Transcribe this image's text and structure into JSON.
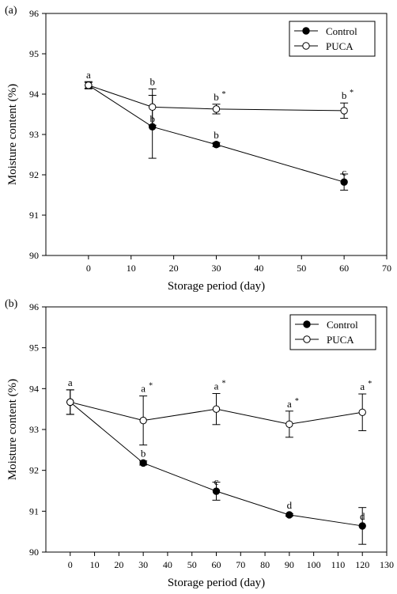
{
  "chart_data": [
    {
      "panel_label": "(a)",
      "type": "line",
      "xlabel": "Storage period (day)",
      "ylabel": "Moisture content (%)",
      "xlim": [
        -10,
        70
      ],
      "ylim": [
        90,
        96
      ],
      "xticks": [
        0,
        10,
        20,
        30,
        40,
        50,
        60,
        70
      ],
      "yticks": [
        90,
        91,
        92,
        93,
        94,
        95,
        96
      ],
      "legend": {
        "position": "top-right",
        "entries": [
          "Control",
          "PUCA"
        ]
      },
      "series": [
        {
          "name": "Control",
          "marker": "filled-circle",
          "x": [
            0,
            15,
            30,
            60
          ],
          "y": [
            94.22,
            93.19,
            92.75,
            91.82
          ],
          "err": [
            0.07,
            0.78,
            0.05,
            0.2
          ],
          "labels": [
            "a",
            "b",
            "b",
            "c"
          ],
          "sig": [
            false,
            false,
            false,
            false
          ]
        },
        {
          "name": "PUCA",
          "marker": "open-circle",
          "x": [
            0,
            15,
            30,
            60
          ],
          "y": [
            94.22,
            93.68,
            93.63,
            93.59
          ],
          "err": [
            0.09,
            0.45,
            0.12,
            0.19
          ],
          "labels": [
            "",
            "b",
            "b",
            "b"
          ],
          "sig": [
            false,
            false,
            true,
            true
          ]
        }
      ]
    },
    {
      "panel_label": "(b)",
      "type": "line",
      "xlabel": "Storage period (day)",
      "ylabel": "Moisture content (%)",
      "xlim": [
        -10,
        130
      ],
      "ylim": [
        90,
        96
      ],
      "xticks": [
        0,
        10,
        20,
        30,
        40,
        50,
        60,
        70,
        80,
        90,
        100,
        110,
        120,
        130
      ],
      "yticks": [
        90,
        91,
        92,
        93,
        94,
        95,
        96
      ],
      "legend": {
        "position": "top-right",
        "entries": [
          "Control",
          "PUCA"
        ]
      },
      "series": [
        {
          "name": "Control",
          "marker": "filled-circle",
          "x": [
            0,
            30,
            60,
            90,
            120
          ],
          "y": [
            93.67,
            92.18,
            91.49,
            90.91,
            90.64
          ],
          "err": [
            0.3,
            0.05,
            0.22,
            0.03,
            0.45
          ],
          "labels": [
            "a",
            "b",
            "c",
            "d",
            "d"
          ],
          "sig": [
            false,
            false,
            false,
            false,
            false
          ]
        },
        {
          "name": "PUCA",
          "marker": "open-circle",
          "x": [
            0,
            30,
            60,
            90,
            120
          ],
          "y": [
            93.67,
            93.22,
            93.5,
            93.13,
            93.42
          ],
          "err": [
            0.3,
            0.6,
            0.38,
            0.32,
            0.45
          ],
          "labels": [
            "",
            "a",
            "a",
            "a",
            "a"
          ],
          "sig": [
            false,
            true,
            true,
            true,
            true
          ]
        }
      ]
    }
  ]
}
